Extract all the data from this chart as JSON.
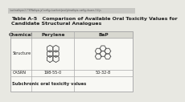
{
  "title_line1": "Table A-5   Comparison of Available Oral Toxicity Values for",
  "title_line2": "Candidate Structural Analogues",
  "header_row": [
    "Chemical",
    "Perylene",
    "BaP"
  ],
  "row1_label": "Structure",
  "row2_label": "CASRN",
  "row2_values": [
    "198-55-0",
    "50-32-8"
  ],
  "row3_label": "Subchronic oral toxicity values",
  "bg_color": "#e8e8e2",
  "border_color": "#aaaaaa",
  "header_bg": "#d8d8d0",
  "url_text": "/usr/mathpix/2.7.9/Mathpix.js?config=/usr/test/pnci/js/mathpix-config-classes.3.4.js",
  "table_bg": "#f0efe8",
  "cell_bg": "#f8f8f4",
  "mol_color": "#555555",
  "text_color": "#222222"
}
